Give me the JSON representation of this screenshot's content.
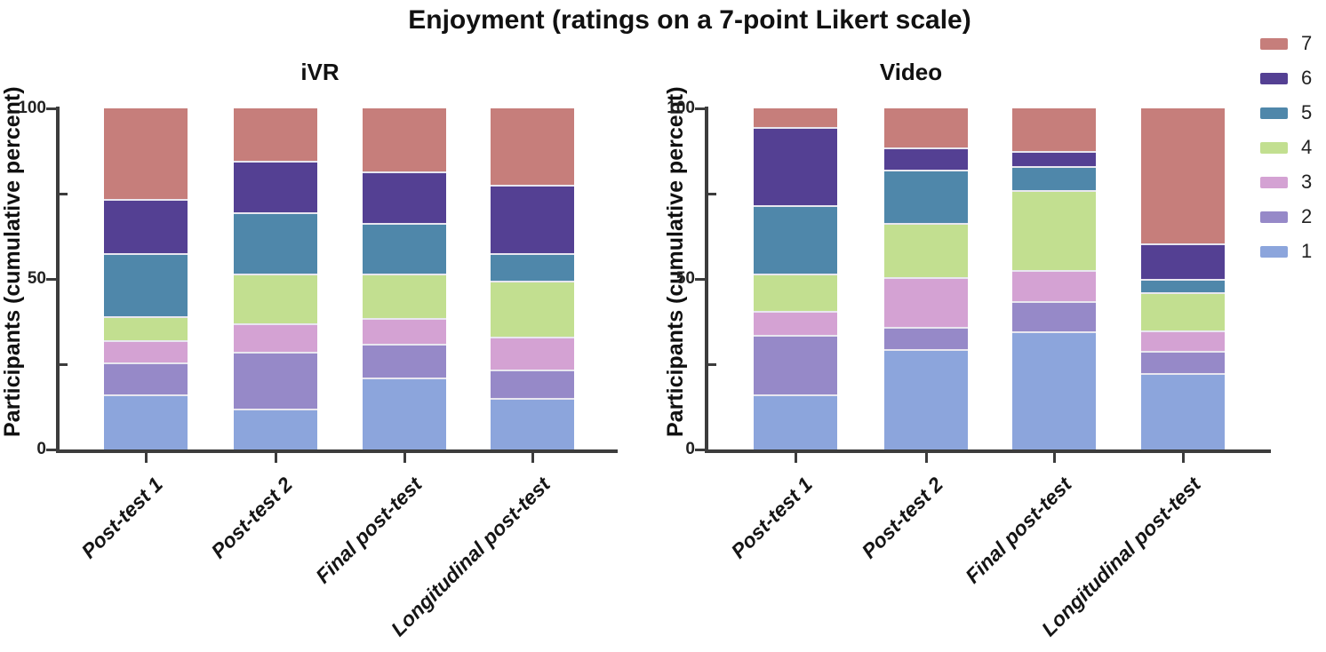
{
  "title": "Enjoyment (ratings on a 7-point Likert scale)",
  "legend": {
    "items": [
      {
        "label": "7",
        "color": "#C67E7B"
      },
      {
        "label": "6",
        "color": "#544093"
      },
      {
        "label": "5",
        "color": "#4F87AA"
      },
      {
        "label": "4",
        "color": "#C2DF90"
      },
      {
        "label": "3",
        "color": "#D4A2D3"
      },
      {
        "label": "2",
        "color": "#9689C8"
      },
      {
        "label": "1",
        "color": "#8CA5DC"
      }
    ]
  },
  "chart_data": [
    {
      "type": "bar",
      "stacked": true,
      "title": "iVR",
      "ylabel": "Participants (cumulative percent)",
      "xlabel": "",
      "ylim": [
        0,
        100
      ],
      "yticks": [
        0,
        50,
        100
      ],
      "yticks_minor": [
        25,
        75
      ],
      "grid": false,
      "legend_position": "top-right of figure",
      "categories": [
        "Post-test 1",
        "Post-test 2",
        "Final post-test",
        "Longitudinal post-test"
      ],
      "series": [
        {
          "name": "1",
          "color": "#8CA5DC",
          "values": [
            15.5,
            11.5,
            20.5,
            14.5
          ]
        },
        {
          "name": "2",
          "color": "#9689C8",
          "values": [
            9.5,
            16.5,
            10,
            8.5
          ]
        },
        {
          "name": "3",
          "color": "#D4A2D3",
          "values": [
            6.5,
            8.5,
            7.5,
            9.5
          ]
        },
        {
          "name": "4",
          "color": "#C2DF90",
          "values": [
            7,
            14.5,
            13,
            16.5
          ]
        },
        {
          "name": "5",
          "color": "#4F87AA",
          "values": [
            18.5,
            18,
            15,
            8
          ]
        },
        {
          "name": "6",
          "color": "#544093",
          "values": [
            16,
            15,
            15,
            20
          ]
        },
        {
          "name": "7",
          "color": "#C67E7B",
          "values": [
            27,
            16,
            19,
            23
          ]
        }
      ]
    },
    {
      "type": "bar",
      "stacked": true,
      "title": "Video",
      "ylabel": "Participants (cumulative percent)",
      "xlabel": "",
      "ylim": [
        0,
        100
      ],
      "yticks": [
        0,
        50,
        100
      ],
      "yticks_minor": [
        25,
        75
      ],
      "grid": false,
      "legend_position": "top-right of figure",
      "categories": [
        "Post-test 1",
        "Post-test 2",
        "Final post-test",
        "Longitudinal post-test"
      ],
      "series": [
        {
          "name": "1",
          "color": "#8CA5DC",
          "values": [
            15.5,
            29,
            34,
            22
          ]
        },
        {
          "name": "2",
          "color": "#9689C8",
          "values": [
            17.5,
            6.5,
            9,
            6.5
          ]
        },
        {
          "name": "3",
          "color": "#D4A2D3",
          "values": [
            7,
            14.5,
            9,
            6
          ]
        },
        {
          "name": "4",
          "color": "#C2DF90",
          "values": [
            11,
            16,
            23.5,
            11
          ]
        },
        {
          "name": "5",
          "color": "#4F87AA",
          "values": [
            20,
            15.5,
            7,
            4
          ]
        },
        {
          "name": "6",
          "color": "#544093",
          "values": [
            23,
            6.5,
            4.5,
            10.5
          ]
        },
        {
          "name": "7",
          "color": "#C67E7B",
          "values": [
            6,
            12,
            13,
            40
          ]
        }
      ]
    }
  ]
}
